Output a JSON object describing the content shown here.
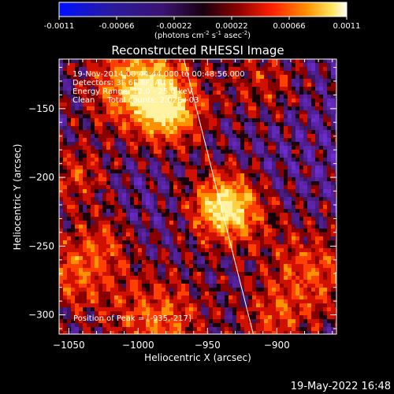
{
  "chart_data": {
    "type": "heatmap",
    "title": "Reconstructed RHESSI Image",
    "xlabel": "Heliocentric X (arcsec)",
    "ylabel": "Heliocentric Y (arcsec)",
    "xlim": [
      -1057,
      -857
    ],
    "ylim": [
      -314,
      -114
    ],
    "xticks": [
      -1050,
      -1000,
      -950,
      -900
    ],
    "yticks": [
      -150,
      -200,
      -250,
      -300
    ],
    "colorbar": {
      "min": -0.0011,
      "max": 0.0011,
      "ticks": [
        "-0.0011",
        "-0.00066",
        "-0.00022",
        "0.00022",
        "0.00066",
        "0.0011"
      ],
      "unit_text": "(photons cm",
      "unit_exp1": "-2",
      "unit_mid": " s",
      "unit_exp2": "-1",
      "unit_mid2": " asec",
      "unit_exp3": "-2",
      "unit_end": ")"
    },
    "info_lines": [
      "19-Nov-2014 00:44:44.000 to 00:48:56.000",
      "Detectors: 3F 6F 8F, Att 0",
      "Energy Range: 12.0 - 25.0 keV",
      "Clean     Total counts: 2.02E+03"
    ],
    "peak_label": "Position of Peak = [-935,-217]",
    "peak": [
      -935,
      -217
    ],
    "limb_line": [
      [
        -967,
        -114
      ],
      [
        -917,
        -314
      ]
    ],
    "sources": [
      {
        "x": -1000,
        "y": -132,
        "sigma": 28,
        "amp": 0.85
      },
      {
        "x": -975,
        "y": -155,
        "sigma": 18,
        "amp": 0.55
      },
      {
        "x": -937,
        "y": -222,
        "sigma": 20,
        "amp": 1.0
      },
      {
        "x": -1045,
        "y": -200,
        "sigma": 18,
        "amp": 0.5
      },
      {
        "x": -1048,
        "y": -270,
        "sigma": 22,
        "amp": 0.6
      },
      {
        "x": -985,
        "y": -305,
        "sigma": 28,
        "amp": 0.65
      },
      {
        "x": -910,
        "y": -130,
        "sigma": 22,
        "amp": 0.45
      },
      {
        "x": -875,
        "y": -270,
        "sigma": 28,
        "amp": 0.6
      },
      {
        "x": -905,
        "y": -308,
        "sigma": 18,
        "amp": 0.4
      },
      {
        "x": -1022,
        "y": -245,
        "sigma": 15,
        "amp": 0.35
      }
    ]
  },
  "footer": {
    "timestamp": "19-May-2022 16:48"
  }
}
